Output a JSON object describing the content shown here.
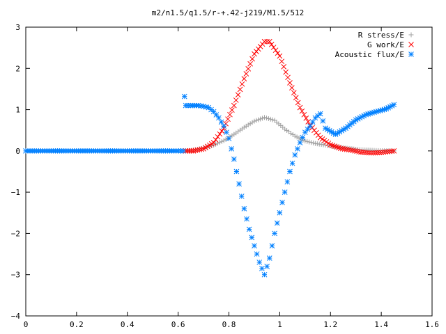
{
  "chart_data": {
    "type": "scatter",
    "title": "m2/n1.5/q1.5/r-+.42-j219/M1.5/512",
    "xlabel": "",
    "ylabel": "",
    "xlim": [
      0,
      1.6
    ],
    "ylim": [
      -4,
      3
    ],
    "x_ticks": [
      "0",
      "0.2",
      "0.4",
      "0.6",
      "0.8",
      "1",
      "1.2",
      "1.4",
      "1.6"
    ],
    "y_ticks": [
      "3",
      "2",
      "1",
      "0",
      "−1",
      "−2",
      "−3",
      "−4"
    ],
    "grid": false,
    "legend_position": "top-right",
    "series": [
      {
        "name": "R stress/E",
        "marker": "plus",
        "color": "#a0a0a0",
        "x": [
          0.63,
          0.66,
          0.7,
          0.74,
          0.78,
          0.82,
          0.86,
          0.9,
          0.94,
          0.98,
          1.02,
          1.06,
          1.1,
          1.14,
          1.18,
          1.22,
          1.26,
          1.3,
          1.34,
          1.38,
          1.42,
          1.45
        ],
        "y": [
          0.0,
          0.02,
          0.07,
          0.14,
          0.25,
          0.4,
          0.57,
          0.72,
          0.81,
          0.74,
          0.53,
          0.36,
          0.24,
          0.18,
          0.14,
          0.1,
          0.07,
          0.04,
          0.02,
          0.01,
          0.0,
          0.0
        ]
      },
      {
        "name": "G work/E",
        "marker": "cross",
        "color": "#ff0000",
        "x": [
          0.63,
          0.66,
          0.7,
          0.74,
          0.78,
          0.82,
          0.86,
          0.9,
          0.94,
          0.96,
          1.0,
          1.04,
          1.08,
          1.12,
          1.16,
          1.2,
          1.24,
          1.28,
          1.32,
          1.36,
          1.4,
          1.45
        ],
        "y": [
          0.0,
          0.0,
          0.05,
          0.2,
          0.55,
          1.1,
          1.75,
          2.35,
          2.65,
          2.65,
          2.3,
          1.65,
          1.05,
          0.62,
          0.32,
          0.15,
          0.06,
          0.02,
          -0.03,
          -0.05,
          -0.04,
          0.0
        ]
      },
      {
        "name": "Acoustic flux/E",
        "marker": "star",
        "color": "#0080ff",
        "x": [
          0.0,
          0.1,
          0.2,
          0.3,
          0.4,
          0.5,
          0.6,
          0.62,
          0.625,
          0.63,
          0.65,
          0.68,
          0.7,
          0.72,
          0.74,
          0.76,
          0.78,
          0.8,
          0.82,
          0.84,
          0.86,
          0.88,
          0.9,
          0.92,
          0.94,
          0.96,
          0.98,
          1.0,
          1.02,
          1.04,
          1.06,
          1.08,
          1.1,
          1.12,
          1.14,
          1.16,
          1.18,
          1.22,
          1.26,
          1.3,
          1.34,
          1.38,
          1.42,
          1.45
        ],
        "y": [
          0.0,
          0.0,
          0.0,
          0.0,
          0.0,
          0.0,
          0.0,
          0.0,
          1.32,
          1.1,
          1.1,
          1.1,
          1.08,
          1.05,
          0.95,
          0.8,
          0.6,
          0.3,
          -0.2,
          -0.8,
          -1.4,
          -1.9,
          -2.3,
          -2.7,
          -3.0,
          -2.6,
          -2.0,
          -1.5,
          -1.0,
          -0.5,
          -0.1,
          0.2,
          0.45,
          0.6,
          0.8,
          0.9,
          0.55,
          0.4,
          0.55,
          0.75,
          0.88,
          0.95,
          1.02,
          1.12
        ]
      }
    ]
  }
}
